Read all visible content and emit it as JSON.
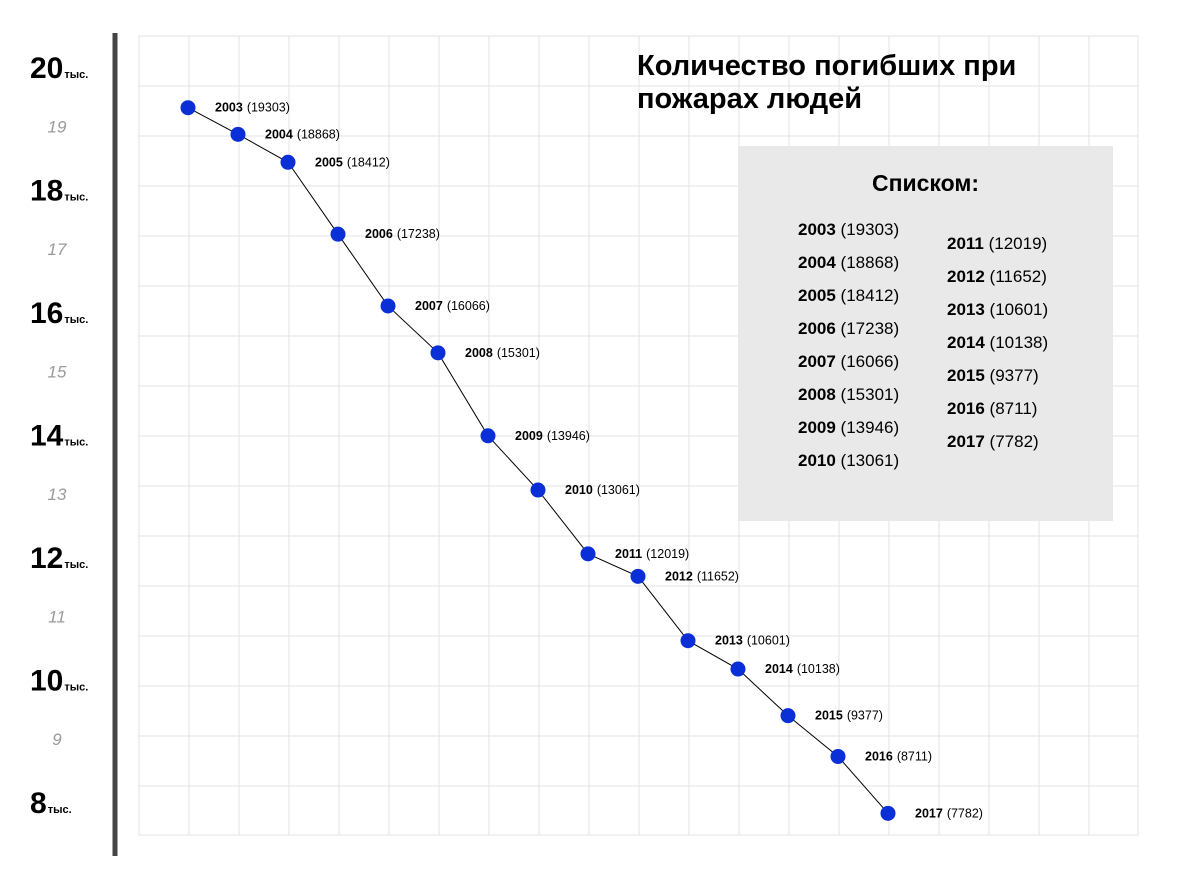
{
  "chart_data": {
    "type": "line",
    "title": "Количество погибших при пожарах людей",
    "title_lines": [
      "Количество погибших при",
      "пожарах людей"
    ],
    "x": [
      2003,
      2004,
      2005,
      2006,
      2007,
      2008,
      2009,
      2010,
      2011,
      2012,
      2013,
      2014,
      2015,
      2016,
      2017
    ],
    "values": [
      19303,
      18868,
      18412,
      17238,
      16066,
      15301,
      13946,
      13061,
      12019,
      11652,
      10601,
      10138,
      9377,
      8711,
      7782
    ],
    "point_labels": [
      {
        "year": "2003",
        "value": "(19303)"
      },
      {
        "year": "2004",
        "value": "(18868)"
      },
      {
        "year": "2005",
        "value": "(18412)"
      },
      {
        "year": "2006",
        "value": "(17238)"
      },
      {
        "year": "2007",
        "value": "(16066)"
      },
      {
        "year": "2008",
        "value": "(15301)"
      },
      {
        "year": "2009",
        "value": "(13946)"
      },
      {
        "year": "2010",
        "value": "(13061)"
      },
      {
        "year": "2011",
        "value": "(12019)"
      },
      {
        "year": "2012",
        "value": "(11652)"
      },
      {
        "year": "2013",
        "value": "(10601)"
      },
      {
        "year": "2014",
        "value": "(10138)"
      },
      {
        "year": "2015",
        "value": "(9377)"
      },
      {
        "year": "2016",
        "value": "(8711)"
      },
      {
        "year": "2017",
        "value": "(7782)"
      }
    ],
    "y_ticks_major": [
      {
        "value": 20000,
        "number": "20",
        "unit": "тыс."
      },
      {
        "value": 18000,
        "number": "18",
        "unit": "тыс."
      },
      {
        "value": 16000,
        "number": "16",
        "unit": "тыс."
      },
      {
        "value": 14000,
        "number": "14",
        "unit": "тыс."
      },
      {
        "value": 12000,
        "number": "12",
        "unit": "тыс."
      },
      {
        "value": 10000,
        "number": "10",
        "unit": "тыс."
      },
      {
        "value": 8000,
        "number": "8",
        "unit": "тыс."
      }
    ],
    "y_ticks_minor": [
      {
        "value": 19000,
        "label": "19"
      },
      {
        "value": 17000,
        "label": "17"
      },
      {
        "value": 15000,
        "label": "15"
      },
      {
        "value": 13000,
        "label": "13"
      },
      {
        "value": 11000,
        "label": "11"
      },
      {
        "value": 9000,
        "label": "9"
      }
    ],
    "ylim": [
      7500,
      20500
    ],
    "grid": true,
    "colors": {
      "point": "#0b2fd6",
      "line": "#000000",
      "grid": "#e3e3e3",
      "axis": "#444444",
      "list_bg": "#e9e9e9"
    }
  },
  "list_panel": {
    "heading": "Списком:",
    "column1": [
      {
        "year": "2003",
        "value": "(19303)"
      },
      {
        "year": "2004",
        "value": "(18868)"
      },
      {
        "year": "2005",
        "value": "(18412)"
      },
      {
        "year": "2006",
        "value": "(17238)"
      },
      {
        "year": "2007",
        "value": "(16066)"
      },
      {
        "year": "2008",
        "value": "(15301)"
      },
      {
        "year": "2009",
        "value": "(13946)"
      },
      {
        "year": "2010",
        "value": "(13061)"
      }
    ],
    "column2": [
      {
        "year": "2011",
        "value": "(12019)"
      },
      {
        "year": "2012",
        "value": "(11652)"
      },
      {
        "year": "2013",
        "value": "(10601)"
      },
      {
        "year": "2014",
        "value": "(10138)"
      },
      {
        "year": "2015",
        "value": "(9377)"
      },
      {
        "year": "2016",
        "value": "(8711)"
      },
      {
        "year": "2017",
        "value": "(7782)"
      }
    ]
  }
}
